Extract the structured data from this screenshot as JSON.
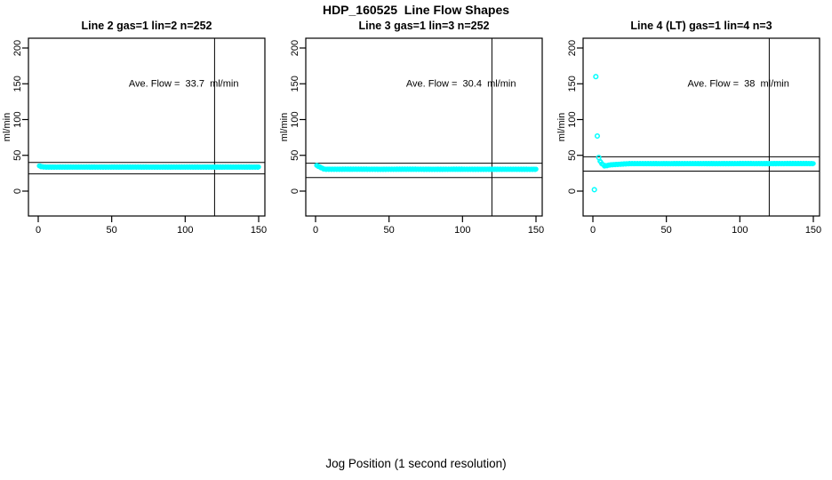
{
  "page": {
    "title": "HDP_160525  Line Flow Shapes",
    "xlabel": "Jog Position (1 second resolution)",
    "background": "#ffffff"
  },
  "colors": {
    "points": "#00ffff",
    "axis": "#000000",
    "reference_lines": "#000000"
  },
  "chart_data": [
    {
      "type": "scatter",
      "title": "Line 2 gas=1 lin=2 n=252",
      "annotation": "Ave. Flow =  33.7  ml/min",
      "ave_flow_ml_min": 33.7,
      "n": 252,
      "ylabel": "ml/min",
      "xlim": [
        0,
        150
      ],
      "ylim": [
        0,
        200
      ],
      "x_ticks": [
        0,
        50,
        100,
        150
      ],
      "y_ticks": [
        0,
        50,
        100,
        150,
        200
      ],
      "grid": false,
      "ref_vline_x": 120,
      "ref_hlines_y": [
        40,
        24
      ],
      "annotation_pos": {
        "x": 99,
        "y": 151
      },
      "outliers": [],
      "band": {
        "samples": 252,
        "control_points": [
          [
            0.7,
            35.3
          ],
          [
            2,
            34.2
          ],
          [
            5,
            33.6
          ],
          [
            150,
            33.6
          ]
        ]
      }
    },
    {
      "type": "scatter",
      "title": "Line 3 gas=1 lin=3 n=252",
      "annotation": "Ave. Flow =  30.4  ml/min",
      "ave_flow_ml_min": 30.4,
      "n": 252,
      "ylabel": "ml/min",
      "xlim": [
        0,
        150
      ],
      "ylim": [
        0,
        200
      ],
      "x_ticks": [
        0,
        50,
        100,
        150
      ],
      "y_ticks": [
        0,
        50,
        100,
        150,
        200
      ],
      "grid": false,
      "ref_vline_x": 120,
      "ref_hlines_y": [
        39,
        19
      ],
      "annotation_pos": {
        "x": 99,
        "y": 151
      },
      "outliers": [],
      "band": {
        "samples": 252,
        "control_points": [
          [
            0.7,
            36
          ],
          [
            2.5,
            34
          ],
          [
            6,
            30.6
          ],
          [
            150,
            30.5
          ]
        ]
      }
    },
    {
      "type": "scatter",
      "title": "Line 4 (LT) gas=1 lin=4 n=3",
      "annotation": "Ave. Flow =  38  ml/min",
      "ave_flow_ml_min": 38,
      "n": 3,
      "ylabel": "ml/min",
      "xlim": [
        0,
        150
      ],
      "ylim": [
        0,
        200
      ],
      "x_ticks": [
        0,
        50,
        100,
        150
      ],
      "y_ticks": [
        0,
        50,
        100,
        150,
        200
      ],
      "grid": false,
      "ref_vline_x": 120,
      "ref_hlines_y": [
        48,
        28
      ],
      "annotation_pos": {
        "x": 99,
        "y": 151
      },
      "outliers": [
        [
          1,
          2
        ],
        [
          2,
          160
        ],
        [
          3,
          77
        ],
        [
          4,
          47
        ]
      ],
      "band": {
        "samples": 240,
        "control_points": [
          [
            4.8,
            42
          ],
          [
            6,
            38.5
          ],
          [
            8,
            35
          ],
          [
            12,
            36.8
          ],
          [
            25,
            38.4
          ],
          [
            150,
            38.5
          ]
        ]
      }
    }
  ]
}
